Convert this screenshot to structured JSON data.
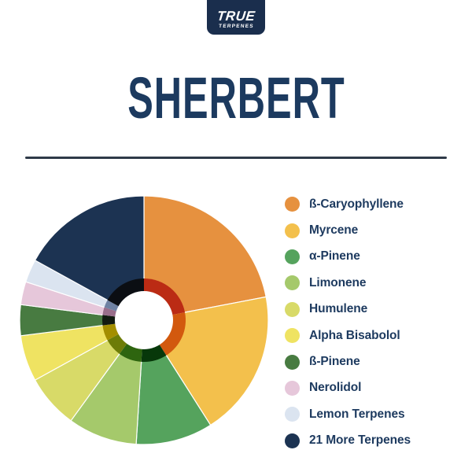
{
  "brand": {
    "logo_line1": "TRUE",
    "logo_line2": "TERPENES"
  },
  "title": "SHERBERT",
  "colors": {
    "background": "#FFFFFF",
    "accent_navy_text": "#1C3A5F",
    "logo_background": "#1A2E4D",
    "divider": "#2F3A48",
    "donut_hole": "#FFFFFF"
  },
  "chart_data": {
    "type": "pie",
    "variant": "donut with darker inner ring and white hole",
    "title": "SHERBERT",
    "direction": "clockwise",
    "start_angle_deg": 0,
    "legend_position": "right",
    "unit": "%",
    "note": "values estimated from arc angles; no numeric labels are shown in the image",
    "series": [
      {
        "label": "ß-Caryophyllene",
        "value": 22,
        "color": "#E6913F",
        "inner_color": "#BB2B14"
      },
      {
        "label": "Myrcene",
        "value": 19,
        "color": "#F3C04C",
        "inner_color": "#D2590E"
      },
      {
        "label": "α-Pinene",
        "value": 10,
        "color": "#55A35D",
        "inner_color": "#07380A"
      },
      {
        "label": "Limonene",
        "value": 9,
        "color": "#A5C96B",
        "inner_color": "#2E650F"
      },
      {
        "label": "Humulene",
        "value": 7,
        "color": "#D8DA68",
        "inner_color": "#6D7C07"
      },
      {
        "label": "Alpha Bisabolol",
        "value": 6,
        "color": "#EFE362",
        "inner_color": "#A38E00"
      },
      {
        "label": "ß-Pinene",
        "value": 4,
        "color": "#487B41",
        "inner_color": "#111A10"
      },
      {
        "label": "Nerolidol",
        "value": 3,
        "color": "#E6C7DA",
        "inner_color": "#996E8B"
      },
      {
        "label": "Lemon Terpenes",
        "value": 3,
        "color": "#DBE4F0",
        "inner_color": "#6F82A3"
      },
      {
        "label": "21 More Terpenes",
        "value": 17,
        "color": "#1C3352",
        "inner_color": "#0B0E13"
      }
    ],
    "geometry": {
      "outer_radius_px": 158,
      "inner_ring_outer_radius_px": 53,
      "hole_radius_px": 37
    }
  }
}
